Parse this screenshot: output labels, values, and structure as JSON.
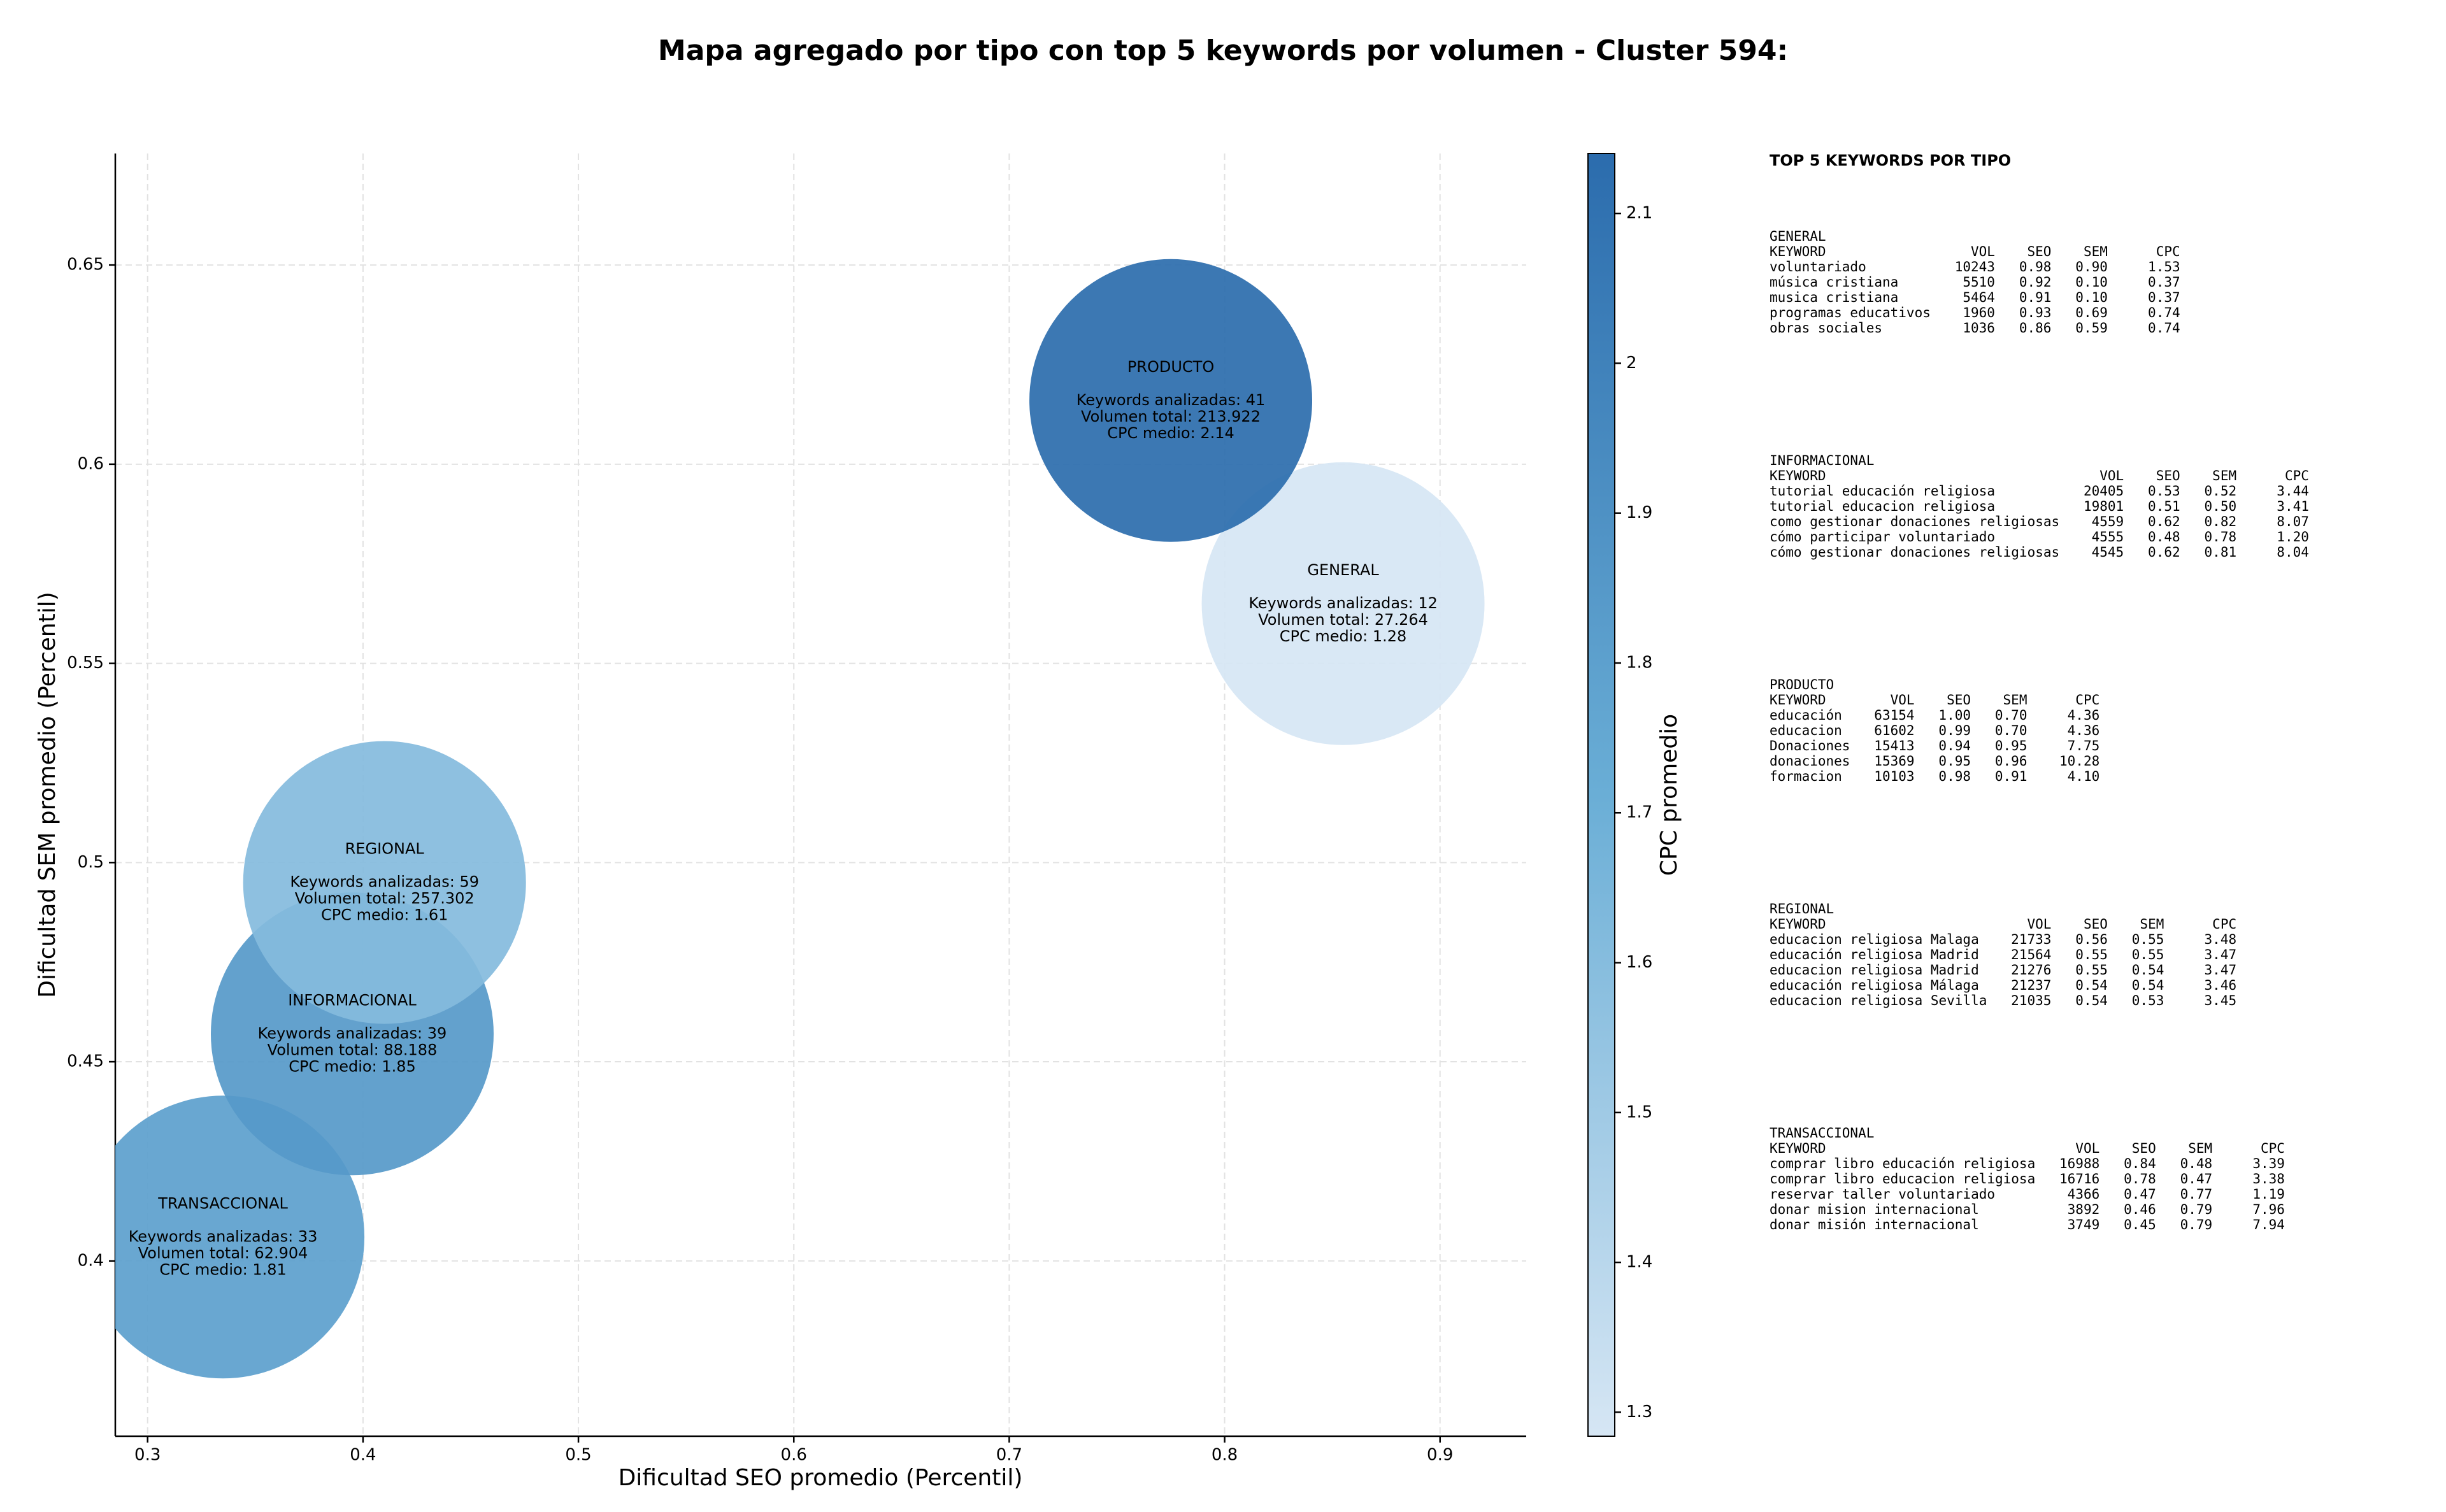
{
  "chart_data": {
    "type": "bubble",
    "title": "Mapa agregado por tipo con top 5 keywords por volumen - Cluster 594:",
    "x_label": "Dificultad SEO promedio (Percentil)",
    "y_label": "Dificultad SEM promedio (Percentil)",
    "xlim": [
      0.285,
      0.94
    ],
    "ylim": [
      0.356,
      0.678
    ],
    "xticks": [
      0.3,
      0.4,
      0.5,
      0.6,
      0.7,
      0.8,
      0.9
    ],
    "yticks": [
      0.4,
      0.45,
      0.5,
      0.55,
      0.6,
      0.65
    ],
    "grid": true,
    "colorbar": {
      "label": "CPC promedio",
      "clim": [
        1.284,
        2.14
      ],
      "ticks": [
        1.3,
        1.4,
        1.5,
        1.6,
        1.7,
        1.8,
        1.9,
        2.0,
        2.1
      ],
      "colormap": [
        "#d6e6f4",
        "#6aaed6",
        "#2b6cad"
      ]
    },
    "points": [
      {
        "name": "TRANSACCIONAL",
        "x": 0.335,
        "y": 0.406,
        "cpc": 1.81,
        "label_lines": [
          "Keywords analizadas: 33",
          "Volumen total: 62.904",
          "CPC medio: 1.81"
        ]
      },
      {
        "name": "INFORMACIONAL",
        "x": 0.395,
        "y": 0.457,
        "cpc": 1.85,
        "label_lines": [
          "Keywords analizadas: 39",
          "Volumen total: 88.188",
          "CPC medio: 1.85"
        ]
      },
      {
        "name": "REGIONAL",
        "x": 0.41,
        "y": 0.495,
        "cpc": 1.61,
        "label_lines": [
          "Keywords analizadas: 59",
          "Volumen total: 257.302",
          "CPC medio: 1.61"
        ]
      },
      {
        "name": "GENERAL",
        "x": 0.855,
        "y": 0.565,
        "cpc": 1.28,
        "label_lines": [
          "Keywords analizadas: 12",
          "Volumen total: 27.264",
          "CPC medio: 1.28"
        ]
      },
      {
        "name": "PRODUCTO",
        "x": 0.775,
        "y": 0.616,
        "cpc": 2.14,
        "label_lines": [
          "Keywords analizadas: 41",
          "Volumen total: 213.922",
          "CPC medio: 2.14"
        ]
      }
    ]
  },
  "side_panel": {
    "title": "TOP 5 KEYWORDS POR TIPO",
    "columns": [
      "KEYWORD",
      "VOL",
      "SEO",
      "SEM",
      "CPC"
    ],
    "sections": [
      {
        "name": "GENERAL",
        "rows": [
          [
            "voluntariado",
            "10243",
            "0.98",
            "0.90",
            "1.53"
          ],
          [
            "música cristiana",
            "5510",
            "0.92",
            "0.10",
            "0.37"
          ],
          [
            "musica cristiana",
            "5464",
            "0.91",
            "0.10",
            "0.37"
          ],
          [
            "programas educativos",
            "1960",
            "0.93",
            "0.69",
            "0.74"
          ],
          [
            "obras sociales",
            "1036",
            "0.86",
            "0.59",
            "0.74"
          ]
        ]
      },
      {
        "name": "INFORMACIONAL",
        "rows": [
          [
            "tutorial educación religiosa",
            "20405",
            "0.53",
            "0.52",
            "3.44"
          ],
          [
            "tutorial educacion religiosa",
            "19801",
            "0.51",
            "0.50",
            "3.41"
          ],
          [
            "como gestionar donaciones religiosas",
            "4559",
            "0.62",
            "0.82",
            "8.07"
          ],
          [
            "cómo participar voluntariado",
            "4555",
            "0.48",
            "0.78",
            "1.20"
          ],
          [
            "cómo gestionar donaciones religiosas",
            "4545",
            "0.62",
            "0.81",
            "8.04"
          ]
        ]
      },
      {
        "name": "PRODUCTO",
        "rows": [
          [
            "educación",
            "63154",
            "1.00",
            "0.70",
            "4.36"
          ],
          [
            "educacion",
            "61602",
            "0.99",
            "0.70",
            "4.36"
          ],
          [
            "Donaciones",
            "15413",
            "0.94",
            "0.95",
            "7.75"
          ],
          [
            "donaciones",
            "15369",
            "0.95",
            "0.96",
            "10.28"
          ],
          [
            "formacion",
            "10103",
            "0.98",
            "0.91",
            "4.10"
          ]
        ]
      },
      {
        "name": "REGIONAL",
        "rows": [
          [
            "educacion religiosa Malaga",
            "21733",
            "0.56",
            "0.55",
            "3.48"
          ],
          [
            "educación religiosa Madrid",
            "21564",
            "0.55",
            "0.55",
            "3.47"
          ],
          [
            "educacion religiosa Madrid",
            "21276",
            "0.55",
            "0.54",
            "3.47"
          ],
          [
            "educación religiosa Málaga",
            "21237",
            "0.54",
            "0.54",
            "3.46"
          ],
          [
            "educacion religiosa Sevilla",
            "21035",
            "0.54",
            "0.53",
            "3.45"
          ]
        ]
      },
      {
        "name": "TRANSACCIONAL",
        "rows": [
          [
            "comprar libro educación religiosa",
            "16988",
            "0.84",
            "0.48",
            "3.39"
          ],
          [
            "comprar libro educacion religiosa",
            "16716",
            "0.78",
            "0.47",
            "3.38"
          ],
          [
            "reservar taller voluntariado",
            "4366",
            "0.47",
            "0.77",
            "1.19"
          ],
          [
            "donar mision internacional",
            "3892",
            "0.46",
            "0.79",
            "7.96"
          ],
          [
            "donar misión internacional",
            "3749",
            "0.45",
            "0.79",
            "7.94"
          ]
        ]
      }
    ]
  }
}
